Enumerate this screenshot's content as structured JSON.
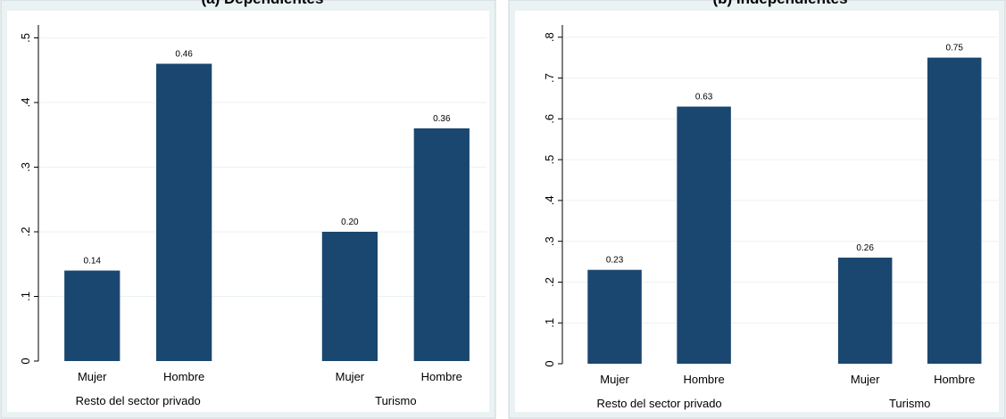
{
  "chart_data": [
    {
      "type": "bar",
      "title": "(a) Dependientes",
      "color": "#1a476f",
      "grid": true,
      "ylim": [
        0,
        0.52
      ],
      "yticks": [
        0,
        {
          "value": 0.1,
          "label": ".1"
        },
        {
          "value": 0.2,
          "label": ".2"
        },
        {
          "value": 0.3,
          "label": ".3"
        },
        {
          "value": 0.4,
          "label": ".4"
        },
        {
          "value": 0.5,
          "label": ".5"
        }
      ],
      "groups": [
        {
          "name": "Resto del sector privado",
          "categories": [
            "Mujer",
            "Hombre"
          ],
          "values": [
            0.14,
            0.46
          ],
          "value_labels": [
            "0.14",
            "0.46"
          ]
        },
        {
          "name": "Turismo",
          "categories": [
            "Mujer",
            "Hombre"
          ],
          "values": [
            0.2,
            0.36
          ],
          "value_labels": [
            "0.20",
            "0.36"
          ]
        }
      ]
    },
    {
      "type": "bar",
      "title": "(b) Independientes",
      "color": "#1a476f",
      "grid": true,
      "ylim": [
        0,
        0.83
      ],
      "yticks": [
        0,
        {
          "value": 0.1,
          "label": ".1"
        },
        {
          "value": 0.2,
          "label": ".2"
        },
        {
          "value": 0.3,
          "label": ".3"
        },
        {
          "value": 0.4,
          "label": ".4"
        },
        {
          "value": 0.5,
          "label": ".5"
        },
        {
          "value": 0.6,
          "label": ".6"
        },
        {
          "value": 0.7,
          "label": ".7"
        },
        {
          "value": 0.8,
          "label": ".8"
        }
      ],
      "groups": [
        {
          "name": "Resto del sector privado",
          "categories": [
            "Mujer",
            "Hombre"
          ],
          "values": [
            0.23,
            0.63
          ],
          "value_labels": [
            "0.23",
            "0.63"
          ]
        },
        {
          "name": "Turismo",
          "categories": [
            "Mujer",
            "Hombre"
          ],
          "values": [
            0.26,
            0.75
          ],
          "value_labels": [
            "0.26",
            "0.75"
          ]
        }
      ]
    }
  ]
}
